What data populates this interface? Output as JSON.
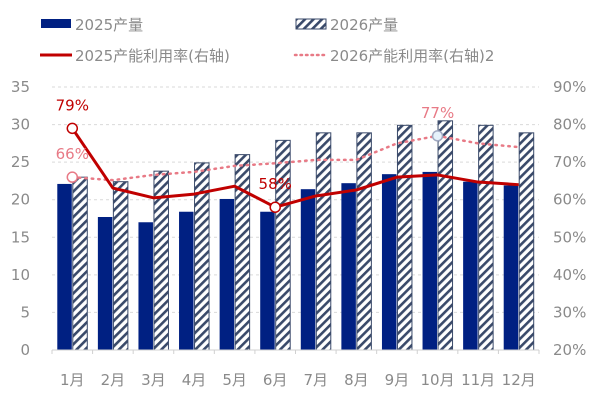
{
  "chart_data": {
    "type": "bar+line",
    "title": "",
    "categories": [
      "1月",
      "2月",
      "3月",
      "4月",
      "5月",
      "6月",
      "7月",
      "8月",
      "9月",
      "10月",
      "11月",
      "12月"
    ],
    "series": [
      {
        "name": "2025产量",
        "type": "bar",
        "axis": "left",
        "color": "#002082",
        "values": [
          22.1,
          17.7,
          17.0,
          18.4,
          20.1,
          18.4,
          21.4,
          22.2,
          23.4,
          23.7,
          22.4,
          21.9
        ]
      },
      {
        "name": "2026产量",
        "type": "bar",
        "axis": "left",
        "pattern": "diagonal-hatch",
        "color": "#3a4a6a",
        "values": [
          23.0,
          22.4,
          23.8,
          24.9,
          26.0,
          27.9,
          28.9,
          28.9,
          29.9,
          30.5,
          29.9,
          28.9
        ]
      },
      {
        "name": "2025产能利用率(右轴)",
        "type": "line",
        "axis": "right",
        "color": "#c00000",
        "values": [
          79,
          63.1,
          60.5,
          61.5,
          63.6,
          58,
          61,
          62.6,
          66,
          66.6,
          64.7,
          64
        ]
      },
      {
        "name": "2026产能利用率(右轴)2",
        "type": "line",
        "style": "dotted",
        "axis": "right",
        "color": "#e87a86",
        "values": [
          66,
          65.2,
          66.6,
          67.4,
          69,
          69.7,
          70.6,
          70.6,
          75,
          77,
          75,
          74
        ]
      }
    ],
    "annotations": [
      {
        "series": 2,
        "index": 0,
        "text": "79%"
      },
      {
        "series": 3,
        "index": 0,
        "text": "66%"
      },
      {
        "series": 2,
        "index": 5,
        "text": "58%"
      },
      {
        "series": 3,
        "index": 9,
        "text": "77%"
      }
    ],
    "left_axis": {
      "min": 0,
      "max": 35,
      "step": 5,
      "ticks": [
        "0",
        "5",
        "10",
        "15",
        "20",
        "25",
        "30",
        "35"
      ]
    },
    "right_axis": {
      "min": 20,
      "max": 90,
      "step": 10,
      "ticks": [
        "20%",
        "30%",
        "40%",
        "50%",
        "60%",
        "70%",
        "80%",
        "90%"
      ]
    },
    "xlabel": "",
    "ylabel": "",
    "grid": true,
    "legend_position": "top"
  },
  "legend": [
    {
      "label": "2025产量"
    },
    {
      "label": "2026产量"
    },
    {
      "label": "2025产能利用率(右轴)"
    },
    {
      "label": "2026产能利用率(右轴)2"
    }
  ]
}
